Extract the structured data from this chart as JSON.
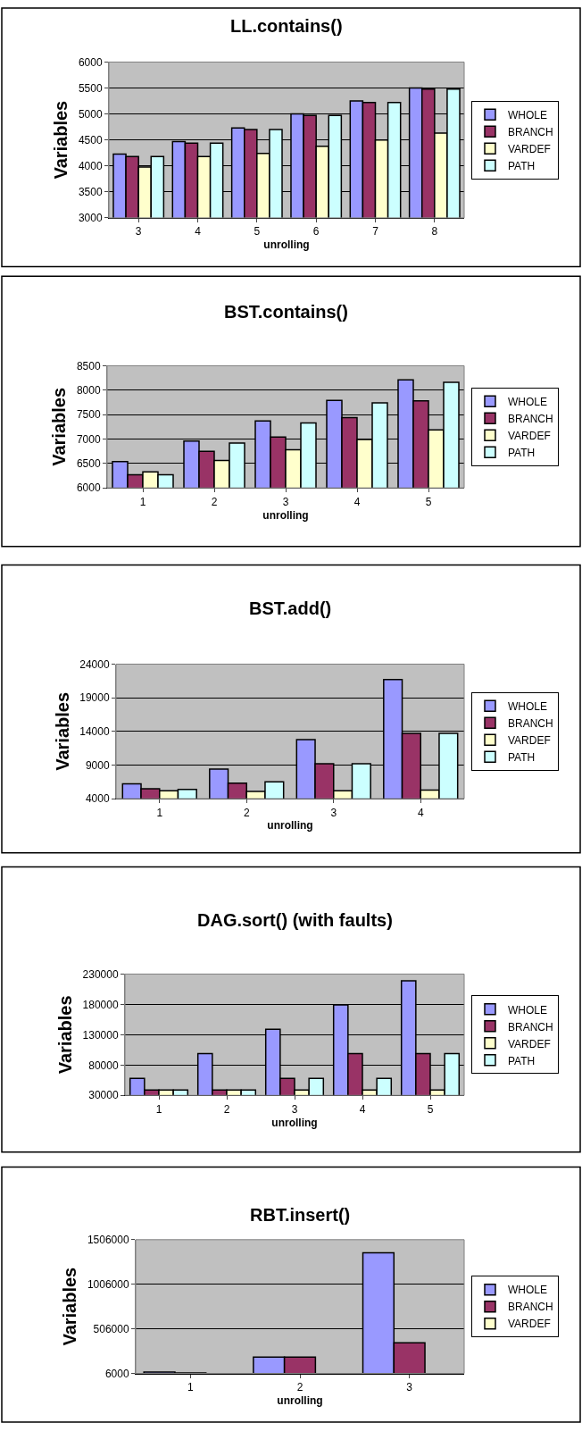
{
  "chart_data": [
    {
      "type": "bar",
      "title": "LL.contains()",
      "xlabel": "unrolling",
      "ylabel": "Variables",
      "categories": [
        "3",
        "4",
        "5",
        "6",
        "7",
        "8"
      ],
      "ylim": [
        3000,
        6000
      ],
      "yticks": [
        3000,
        3500,
        4000,
        4500,
        5000,
        5500,
        6000
      ],
      "grid": "y",
      "legend": "right",
      "series": [
        {
          "name": "WHOLE",
          "color": "#9999ff",
          "values": [
            4230,
            4470,
            4730,
            5000,
            5250,
            5500
          ]
        },
        {
          "name": "BRANCH",
          "color": "#993366",
          "values": [
            4180,
            4440,
            4700,
            4970,
            5220,
            5480
          ]
        },
        {
          "name": "VARDEF",
          "color": "#ffffcc",
          "values": [
            3980,
            4180,
            4240,
            4380,
            4500,
            4630
          ]
        },
        {
          "name": "PATH",
          "color": "#ccffff",
          "values": [
            4180,
            4440,
            4700,
            4970,
            5220,
            5480
          ]
        }
      ]
    },
    {
      "type": "bar",
      "title": "BST.contains()",
      "xlabel": "unrolling",
      "ylabel": "Variables",
      "categories": [
        "1",
        "2",
        "3",
        "4",
        "5"
      ],
      "ylim": [
        6000,
        8500
      ],
      "yticks": [
        6000,
        6500,
        7000,
        7500,
        8000,
        8500
      ],
      "grid": "y",
      "legend": "right",
      "series": [
        {
          "name": "WHOLE",
          "color": "#9999ff",
          "values": [
            6540,
            6960,
            7370,
            7790,
            8210
          ]
        },
        {
          "name": "BRANCH",
          "color": "#993366",
          "values": [
            6270,
            6750,
            7040,
            7440,
            7780
          ]
        },
        {
          "name": "VARDEF",
          "color": "#ffffcc",
          "values": [
            6330,
            6560,
            6780,
            6990,
            7190
          ]
        },
        {
          "name": "PATH",
          "color": "#ccffff",
          "values": [
            6270,
            6920,
            7330,
            7740,
            8160
          ]
        }
      ]
    },
    {
      "type": "bar",
      "title": "BST.add()",
      "xlabel": "unrolling",
      "ylabel": "Variables",
      "categories": [
        "1",
        "2",
        "3",
        "4"
      ],
      "ylim": [
        4000,
        24000
      ],
      "yticks": [
        4000,
        9000,
        14000,
        19000,
        24000
      ],
      "grid": "y",
      "legend": "right",
      "series": [
        {
          "name": "WHOLE",
          "color": "#9999ff",
          "values": [
            6200,
            8400,
            12800,
            21700
          ]
        },
        {
          "name": "BRANCH",
          "color": "#993366",
          "values": [
            5500,
            6300,
            9200,
            13700
          ]
        },
        {
          "name": "VARDEF",
          "color": "#ffffcc",
          "values": [
            5200,
            5100,
            5200,
            5300
          ]
        },
        {
          "name": "PATH",
          "color": "#ccffff",
          "values": [
            5400,
            6500,
            9200,
            13700
          ]
        }
      ]
    },
    {
      "type": "bar",
      "title": "DAG.sort() (with faults)",
      "xlabel": "unrolling",
      "ylabel": "Variables",
      "categories": [
        "1",
        "2",
        "3",
        "4",
        "5"
      ],
      "ylim": [
        30000,
        230000
      ],
      "yticks": [
        30000,
        80000,
        130000,
        180000,
        230000
      ],
      "grid": "y",
      "legend": "right",
      "series": [
        {
          "name": "WHOLE",
          "color": "#9999ff",
          "values": [
            58000,
            99000,
            139000,
            179000,
            219000
          ]
        },
        {
          "name": "BRANCH",
          "color": "#993366",
          "values": [
            39000,
            39000,
            58000,
            99000,
            99000
          ]
        },
        {
          "name": "VARDEF",
          "color": "#ffffcc",
          "values": [
            39000,
            39000,
            39000,
            39000,
            39000
          ]
        },
        {
          "name": "PATH",
          "color": "#ccffff",
          "values": [
            39000,
            39000,
            58000,
            58000,
            99000
          ]
        }
      ]
    },
    {
      "type": "bar",
      "title": "RBT.insert()",
      "xlabel": "unrolling",
      "ylabel": "Variables",
      "categories": [
        "1",
        "2",
        "3"
      ],
      "ylim": [
        6000,
        1506000
      ],
      "yticks": [
        6000,
        506000,
        1006000,
        1506000
      ],
      "grid": "y",
      "legend": "right",
      "series": [
        {
          "name": "WHOLE",
          "color": "#9999ff",
          "values": [
            20000,
            190000,
            1360000
          ]
        },
        {
          "name": "BRANCH",
          "color": "#993366",
          "values": [
            10000,
            190000,
            350000
          ]
        },
        {
          "name": "VARDEF",
          "color": "#ffffcc",
          "values": [
            null,
            null,
            null
          ]
        }
      ]
    }
  ]
}
